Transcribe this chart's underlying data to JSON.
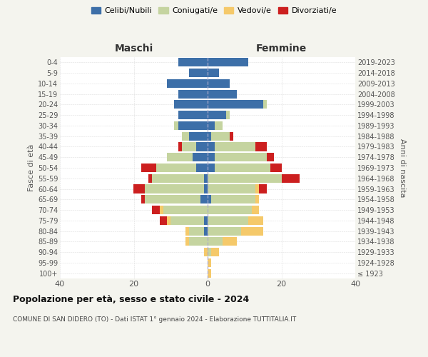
{
  "age_groups": [
    "100+",
    "95-99",
    "90-94",
    "85-89",
    "80-84",
    "75-79",
    "70-74",
    "65-69",
    "60-64",
    "55-59",
    "50-54",
    "45-49",
    "40-44",
    "35-39",
    "30-34",
    "25-29",
    "20-24",
    "15-19",
    "10-14",
    "5-9",
    "0-4"
  ],
  "birth_years": [
    "≤ 1923",
    "1924-1928",
    "1929-1933",
    "1934-1938",
    "1939-1943",
    "1944-1948",
    "1949-1953",
    "1954-1958",
    "1959-1963",
    "1964-1968",
    "1969-1973",
    "1974-1978",
    "1979-1983",
    "1984-1988",
    "1989-1993",
    "1994-1998",
    "1999-2003",
    "2004-2008",
    "2009-2013",
    "2014-2018",
    "2019-2023"
  ],
  "colors": {
    "celibe": "#3d6fa8",
    "coniugato": "#c5d4a0",
    "vedovo": "#f5c96a",
    "divorziato": "#cc1f1f"
  },
  "maschi": {
    "celibe": [
      0,
      0,
      0,
      0,
      1,
      1,
      0,
      2,
      1,
      1,
      3,
      4,
      3,
      5,
      8,
      8,
      9,
      8,
      11,
      5,
      8
    ],
    "coniugato": [
      0,
      0,
      0,
      5,
      4,
      9,
      12,
      15,
      16,
      14,
      11,
      7,
      4,
      2,
      1,
      0,
      0,
      0,
      0,
      0,
      0
    ],
    "vedovo": [
      0,
      0,
      1,
      1,
      1,
      1,
      1,
      0,
      0,
      0,
      0,
      0,
      0,
      0,
      0,
      0,
      0,
      0,
      0,
      0,
      0
    ],
    "divorziato": [
      0,
      0,
      0,
      0,
      0,
      2,
      2,
      1,
      3,
      1,
      4,
      0,
      1,
      0,
      0,
      0,
      0,
      0,
      0,
      0,
      0
    ]
  },
  "femmine": {
    "nubile": [
      0,
      0,
      0,
      0,
      0,
      0,
      0,
      1,
      0,
      0,
      2,
      2,
      2,
      1,
      2,
      5,
      15,
      8,
      6,
      3,
      11
    ],
    "coniugata": [
      0,
      0,
      1,
      4,
      9,
      11,
      12,
      12,
      13,
      20,
      15,
      14,
      11,
      5,
      2,
      1,
      1,
      0,
      0,
      0,
      0
    ],
    "vedova": [
      1,
      1,
      2,
      4,
      6,
      4,
      2,
      1,
      1,
      0,
      0,
      0,
      0,
      0,
      0,
      0,
      0,
      0,
      0,
      0,
      0
    ],
    "divorziata": [
      0,
      0,
      0,
      0,
      0,
      0,
      0,
      0,
      2,
      5,
      3,
      2,
      3,
      1,
      0,
      0,
      0,
      0,
      0,
      0,
      0
    ]
  },
  "xlim": 40,
  "title": "Popolazione per età, sesso e stato civile - 2024",
  "subtitle": "COMUNE DI SAN DIDERO (TO) - Dati ISTAT 1° gennaio 2024 - Elaborazione TUTTITALIA.IT",
  "ylabel_left": "Fasce di età",
  "ylabel_right": "Anni di nascita",
  "xlabel_maschi": "Maschi",
  "xlabel_femmine": "Femmine",
  "legend_labels": [
    "Celibi/Nubili",
    "Coniugati/e",
    "Vedovi/e",
    "Divorziati/e"
  ],
  "bg_color": "#f4f4ee",
  "bar_bg_color": "#ffffff"
}
